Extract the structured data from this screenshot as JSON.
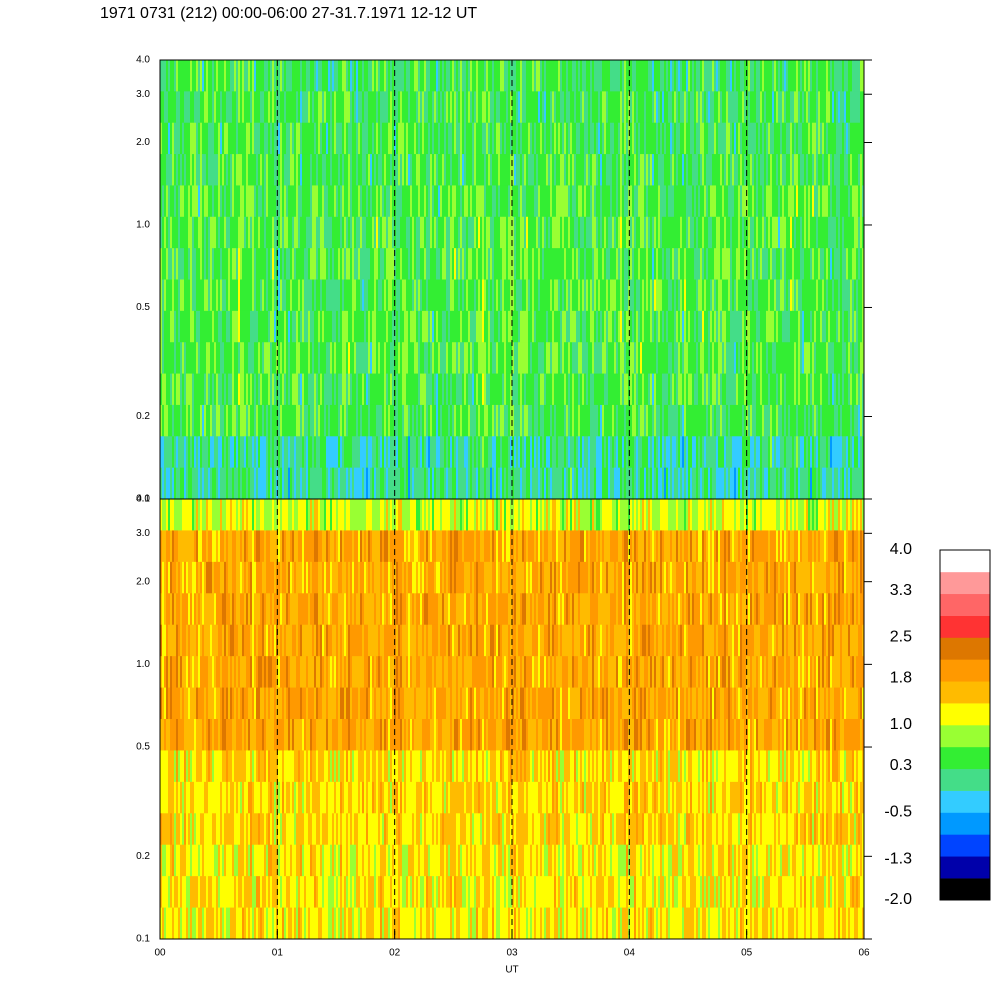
{
  "chart_data": {
    "type": "spectrogram",
    "title": "1971 0731 (212) 00:00-06:00 27-31.7.1971  12-12 UT",
    "xlabel": "UT",
    "xlim": [
      0,
      6
    ],
    "xticks": [
      {
        "value": 0,
        "label": "00"
      },
      {
        "value": 1,
        "label": "01"
      },
      {
        "value": 2,
        "label": "02"
      },
      {
        "value": 3,
        "label": "03"
      },
      {
        "value": 4,
        "label": "04"
      },
      {
        "value": 5,
        "label": "05"
      },
      {
        "value": 6,
        "label": "06"
      }
    ],
    "panels": [
      {
        "ylim": [
          0.1,
          4.0
        ],
        "log_y": true,
        "yticks": [
          0.1,
          0.2,
          0.5,
          {
            "value": 1,
            "label": "1.0"
          },
          {
            "value": 2,
            "label": "2.0"
          },
          {
            "value": 3,
            "label": "3.0"
          },
          {
            "value": 4,
            "label": "4.0"
          }
        ]
      },
      {
        "ylim": [
          0.1,
          4.0
        ],
        "log_y": true,
        "yticks": [
          0.1,
          0.2,
          0.5,
          {
            "value": 1,
            "label": "1.0"
          },
          {
            "value": 2,
            "label": "2.0"
          },
          {
            "value": 3,
            "label": "3.0"
          },
          {
            "value": 4,
            "label": "4.0"
          }
        ]
      }
    ],
    "colorbar": {
      "lim": [
        -2,
        4
      ],
      "ticks": [
        {
          "value": -2,
          "label": "-2.0"
        },
        -1.3,
        -0.5,
        0.3,
        {
          "value": 1,
          "label": "1.0"
        },
        1.8,
        2.5,
        3.3,
        {
          "value": 4,
          "label": "4.0"
        }
      ],
      "colors": [
        "#000000",
        "#0000aa",
        "#0044ff",
        "#0099ff",
        "#33ccff",
        "#44dd88",
        "#33ee33",
        "#99ff33",
        "#ffff00",
        "#ffbb00",
        "#ff9900",
        "#dd7700",
        "#ff3333",
        "#ff6666",
        "#ff9999",
        "#ffffff"
      ]
    }
  }
}
